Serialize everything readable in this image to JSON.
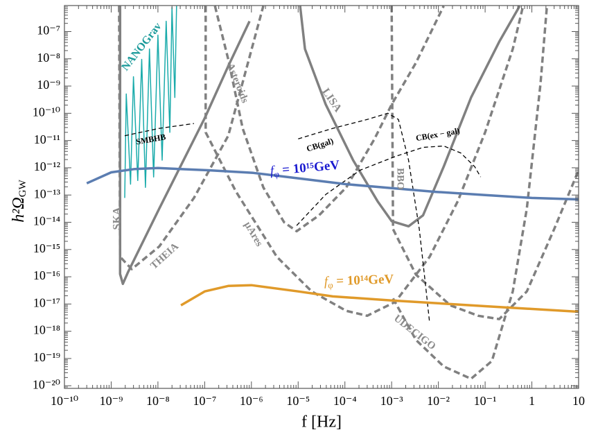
{
  "chart_data": {
    "type": "line",
    "xlabel": "f [Hz]",
    "ylabel": [
      "h²Ω",
      "GW"
    ],
    "xscale": "log",
    "yscale": "log",
    "xlim": [
      1e-10,
      10
    ],
    "ylim": [
      8e-21,
      9e-07
    ],
    "xticks": [
      {
        "value": 1e-10,
        "label": "10⁻¹⁰"
      },
      {
        "value": 1e-09,
        "label": "10⁻⁹"
      },
      {
        "value": 1e-08,
        "label": "10⁻⁸"
      },
      {
        "value": 1e-07,
        "label": "10⁻⁷"
      },
      {
        "value": 1e-06,
        "label": "10⁻⁶"
      },
      {
        "value": 1e-05,
        "label": "10⁻⁵"
      },
      {
        "value": 0.0001,
        "label": "10⁻⁴"
      },
      {
        "value": 0.001,
        "label": "10⁻³"
      },
      {
        "value": 0.01,
        "label": "10⁻²"
      },
      {
        "value": 0.1,
        "label": "10⁻¹"
      },
      1,
      10
    ],
    "yticks": [
      {
        "value": 1e-20,
        "label": "10⁻²⁰"
      },
      {
        "value": 1e-19,
        "label": "10⁻¹⁹"
      },
      {
        "value": 1e-18,
        "label": "10⁻¹⁸"
      },
      {
        "value": 1e-17,
        "label": "10⁻¹⁷"
      },
      {
        "value": 1e-16,
        "label": "10⁻¹⁶"
      },
      {
        "value": 1e-15,
        "label": "10⁻¹⁵"
      },
      {
        "value": 1e-14,
        "label": "10⁻¹⁴"
      },
      {
        "value": 1e-13,
        "label": "10⁻¹³"
      },
      {
        "value": 1e-12,
        "label": "10⁻¹²"
      },
      {
        "value": 1e-11,
        "label": "10⁻¹¹"
      },
      {
        "value": 1e-10,
        "label": "10⁻¹⁰"
      },
      {
        "value": 1e-09,
        "label": "10⁻⁹"
      },
      {
        "value": 1e-08,
        "label": "10⁻⁸"
      },
      {
        "value": 1e-07,
        "label": "10⁻⁷"
      }
    ],
    "series": [
      {
        "name": "NANOGrav",
        "color": "#1aabab",
        "linestyle": "solid",
        "width": 1.5,
        "x": [
          1.95e-09,
          2.1e-09,
          2.6e-09,
          3e-09,
          3.7e-09,
          4.5e-09,
          5.4e-09,
          6.6e-09,
          8.1e-09,
          1e-08,
          1.23e-08,
          1.5e-08,
          1.8e-08,
          2e-08,
          2.3e-08,
          2.5e-08
        ],
        "values": [
          7.8e-14,
          5.1e-10,
          2.5e-13,
          2.2e-09,
          3.4e-13,
          9.5e-09,
          1.9e-13,
          2.3e-08,
          4.6e-13,
          7.4e-08,
          1.9e-12,
          2.4e-07,
          2e-11,
          7.8e-07,
          3.8e-10,
          8.7e-07
        ]
      },
      {
        "name": "SKA",
        "color": "#808080",
        "linestyle": "solid",
        "width": 3.5,
        "x": [
          1.55e-09,
          1.55e-09,
          1.78e-09,
          2.3e-09,
          1.07e-08,
          1e-07,
          3.2e-07,
          9.1e-07
        ],
        "values": [
          8.7e-07,
          1.26e-16,
          5.5e-17,
          1.5e-16,
          3.2e-14,
          6.6e-11,
          5.4e-09,
          2.4e-07
        ]
      },
      {
        "name": "THEIA",
        "color": "#808080",
        "linestyle": "dashed",
        "width": 3.5,
        "x": [
          1.48e-09,
          1.55e-09,
          2.75e-09,
          1.07e-08,
          5.9e-08,
          3.2e-07,
          1.8e-06
        ],
        "values": [
          8.7e-07,
          5.4e-16,
          1.9e-16,
          1.3e-15,
          7.8e-14,
          1.5e-11,
          8.7e-07
        ]
      },
      {
        "name": "Asteroids",
        "color": "#808080",
        "linestyle": "dashed",
        "width": 3.5,
        "x": [
          1.66e-07,
          3.2e-07,
          6.5e-07,
          1.8e-06,
          5e-06,
          9.3e-06,
          2.8e-05,
          0.000107,
          0.00043,
          0.001,
          0.0033,
          0.013
        ],
        "values": [
          8.7e-07,
          9.5e-09,
          2.8e-11,
          1.9e-13,
          1e-14,
          4.7e-15,
          1.8e-14,
          1.9e-13,
          1.15e-11,
          2.1e-10,
          7.1e-09,
          8.7e-07
        ]
      },
      {
        "name": "μAres",
        "color": "#808080",
        "linestyle": "dashed",
        "width": 3.5,
        "x": [
          1.05e-07,
          1.05e-07,
          4.6e-07,
          3.5e-06,
          1.95e-05,
          0.000107,
          0.0003,
          0.0012,
          0.0065,
          0.026,
          0.1,
          0.39,
          0.65
        ],
        "values": [
          8.7e-07,
          2e-11,
          1.4e-13,
          5.4e-16,
          2.9e-17,
          5.6e-18,
          3.7e-18,
          1.2e-17,
          5.4e-16,
          5.9e-14,
          2e-11,
          2.3e-08,
          8.7e-07
        ]
      },
      {
        "name": "LISA",
        "color": "#808080",
        "linestyle": "solid",
        "width": 3.5,
        "x": [
          1.1e-05,
          1.4e-05,
          3.9e-05,
          0.00015,
          0.0005,
          0.001,
          0.0023,
          0.0047,
          0.013,
          0.05,
          0.2,
          0.55
        ],
        "values": [
          8.7e-07,
          2.3e-08,
          2.1e-10,
          1.9e-12,
          5.9e-14,
          1.1e-14,
          7.1e-15,
          1.8e-14,
          1.1e-12,
          3.8e-10,
          4.2e-08,
          8.7e-07
        ]
      },
      {
        "name": "BBO",
        "color": "#808080",
        "linestyle": "dashed",
        "width": 3.5,
        "x": [
          0.001,
          0.00107,
          0.0033,
          0.018,
          0.071,
          0.2,
          0.78,
          3,
          10
        ],
        "values": [
          8.7e-07,
          5.6e-15,
          1.2e-16,
          8.9e-18,
          3.7e-18,
          2.8e-18,
          2.9e-17,
          5.6e-15,
          8.1e-13
        ]
      },
      {
        "name": "UDECIGO",
        "color": "#808080",
        "linestyle": "dashed",
        "width": 3.5,
        "x": [
          0.00107,
          0.0033,
          0.013,
          0.05,
          0.14,
          0.39,
          0.78,
          1.53,
          2.1
        ],
        "values": [
          1.6e-17,
          4.8e-19,
          5.1e-20,
          1.8e-20,
          8.1e-20,
          2.9e-17,
          3.2e-14,
          1.2e-09,
          8.7e-07
        ]
      },
      {
        "name": "SMBHB",
        "color": "#000000",
        "linestyle": "thin-dashed",
        "width": 1.3,
        "x": [
          1.95e-09,
          1.07e-08,
          5.9e-08
        ],
        "values": [
          1.5e-11,
          2.8e-11,
          4.2e-11
        ]
      },
      {
        "name": "CB(gal)",
        "color": "#000000",
        "linestyle": "thin-dashed",
        "width": 1.3,
        "x": [
          1e-05,
          5.5e-05,
          0.0003,
          0.00083,
          0.0014,
          0.0023,
          0.0039,
          0.0055,
          0.0065
        ],
        "values": [
          1.15e-11,
          2.8e-11,
          5.9e-11,
          1e-10,
          5.9e-11,
          1.9e-12,
          5.6e-15,
          2.9e-17,
          2e-18
        ]
      },
      {
        "name": "CB(ex − gal)",
        "color": "#000000",
        "linestyle": "thin-dashed",
        "width": 1.3,
        "x": [
          9.3e-06,
          3.9e-05,
          0.00021,
          0.0012,
          0.0047,
          0.013,
          0.03,
          0.06,
          0.08
        ],
        "values": [
          7.6e-15,
          1.05e-13,
          8.1e-13,
          2.6e-12,
          5.6e-12,
          6.3e-12,
          3.5e-12,
          1.1e-12,
          4.6e-13
        ]
      },
      {
        "color": "#5b7db1",
        "linestyle": "solid",
        "width": 3.5,
        "x": [
          3e-10,
          1e-09,
          3.2e-09,
          1e-08,
          1.2e-07,
          1.1e-06,
          1e-05,
          0.000107,
          0.001,
          0.009,
          0.1,
          1,
          10
        ],
        "values": [
          2.7e-13,
          6.8e-13,
          9e-13,
          9.8e-13,
          8.1e-13,
          6.5e-13,
          4.1e-13,
          2.5e-13,
          1.8e-13,
          1.3e-13,
          1e-13,
          7.8e-14,
          6.9e-14
        ]
      },
      {
        "color": "#e09a2a",
        "linestyle": "solid",
        "width": 3.5,
        "x": [
          3.1e-08,
          1e-07,
          3.2e-07,
          1e-06,
          1e-05,
          5.5e-05,
          0.001,
          0.1,
          10
        ],
        "values": [
          8.9e-18,
          2.9e-17,
          4.6e-17,
          4.9e-17,
          2.9e-17,
          1.9e-17,
          1.35e-17,
          8.3e-18,
          5.2e-18
        ]
      }
    ],
    "annotations": [
      {
        "parts": [
          "f",
          "φ",
          " = 10¹⁵GeV"
        ],
        "color": "#1a1ad0"
      },
      {
        "parts": [
          "f",
          "φ",
          " = 10¹⁴GeV"
        ],
        "color": "#e09a2a"
      }
    ]
  }
}
